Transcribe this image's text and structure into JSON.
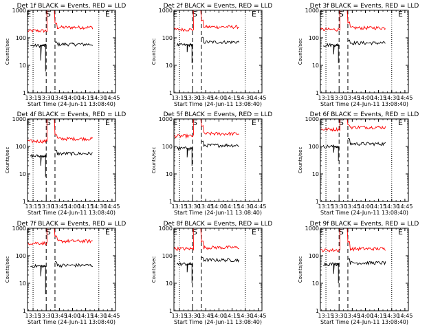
{
  "figure": {
    "background": "#ffffff"
  },
  "chart_data": [
    {
      "type": "line",
      "title": "Det 1f BLACK = Events, RED = LLD",
      "xlabel": "Start Time (24-Jun-11 13:08:40)",
      "ylabel": "Counts/sec",
      "yscale": "log",
      "ylim": [
        1,
        1000
      ],
      "y_ticks": [
        "1",
        "10",
        "100",
        "1000"
      ],
      "x_ticks": [
        "13:15",
        "13:30",
        "13:45",
        "14:00",
        "14:15",
        "14:30",
        "14:45"
      ],
      "markers": [
        "E",
        "S",
        "E"
      ],
      "series": [
        {
          "color": "#ff0000",
          "segments": [
            {
              "start": "13:08:40",
              "end": "13:31:00",
              "level": 180
            },
            {
              "start": "13:40:00",
              "end": "14:23:00",
              "level": 240,
              "peak": 330
            }
          ]
        },
        {
          "color": "#000000",
          "segments": [
            {
              "start": "13:12:00",
              "end": "13:30:00",
              "level": 52,
              "dips": [
                15,
                6
              ]
            },
            {
              "start": "13:40:00",
              "end": "14:23:00",
              "level": 58,
              "peak": 70
            }
          ]
        }
      ]
    },
    {
      "type": "line",
      "title": "Det 2f BLACK = Events, RED = LLD",
      "xlabel": "Start Time (24-Jun-11 13:08:40)",
      "ylabel": "Counts/sec",
      "yscale": "log",
      "ylim": [
        1,
        1000
      ],
      "y_ticks": [
        "1",
        "10",
        "100",
        "1000"
      ],
      "x_ticks": [
        "13:15",
        "13:30",
        "13:45",
        "14:00",
        "14:15",
        "14:30",
        "14:45"
      ],
      "markers": [
        "E",
        "S",
        "E"
      ],
      "series": [
        {
          "color": "#ff0000",
          "segments": [
            {
              "start": "13:08:40",
              "end": "13:31:00",
              "level": 200
            },
            {
              "start": "13:40:00",
              "end": "14:23:00",
              "level": 250,
              "peak": 420
            }
          ]
        },
        {
          "color": "#000000",
          "segments": [
            {
              "start": "13:12:00",
              "end": "13:30:00",
              "level": 55,
              "dips": [
                30,
                12
              ]
            },
            {
              "start": "13:40:00",
              "end": "14:23:00",
              "level": 70,
              "peak": 100
            }
          ]
        }
      ]
    },
    {
      "type": "line",
      "title": "Det 3f BLACK = Events, RED = LLD",
      "xlabel": "Start Time (24-Jun-11 13:08:40)",
      "ylabel": "Counts/sec",
      "yscale": "log",
      "ylim": [
        1,
        1000
      ],
      "y_ticks": [
        "1",
        "10",
        "100",
        "1000"
      ],
      "x_ticks": [
        "13:15",
        "13:30",
        "13:45",
        "14:00",
        "14:15",
        "14:30",
        "14:45"
      ],
      "markers": [
        "E",
        "S",
        "E"
      ],
      "series": [
        {
          "color": "#ff0000",
          "segments": [
            {
              "start": "13:08:40",
              "end": "13:31:00",
              "level": 200
            },
            {
              "start": "13:40:00",
              "end": "14:23:00",
              "level": 230,
              "peak": 360
            }
          ]
        },
        {
          "color": "#000000",
          "segments": [
            {
              "start": "13:12:00",
              "end": "13:30:00",
              "level": 55,
              "dips": [
                25,
                12
              ]
            },
            {
              "start": "13:40:00",
              "end": "14:23:00",
              "level": 65,
              "peak": 85
            }
          ]
        }
      ]
    },
    {
      "type": "line",
      "title": "Det 4f BLACK = Events, RED = LLD",
      "xlabel": "Start Time (24-Jun-11 13:08:40)",
      "ylabel": "Counts/sec",
      "yscale": "log",
      "ylim": [
        1,
        1000
      ],
      "y_ticks": [
        "1",
        "10",
        "100",
        "1000"
      ],
      "x_ticks": [
        "13:15",
        "13:30",
        "13:45",
        "14:00",
        "14:15",
        "14:30",
        "14:45"
      ],
      "markers": [
        "E",
        "S",
        "E"
      ],
      "series": [
        {
          "color": "#ff0000",
          "segments": [
            {
              "start": "13:08:40",
              "end": "13:31:00",
              "level": 155
            },
            {
              "start": "13:40:00",
              "end": "14:23:00",
              "level": 190,
              "peak": 270
            }
          ]
        },
        {
          "color": "#000000",
          "segments": [
            {
              "start": "13:12:00",
              "end": "13:30:00",
              "level": 45,
              "dips": [
                20,
                8
              ]
            },
            {
              "start": "13:40:00",
              "end": "14:23:00",
              "level": 55,
              "peak": 70
            }
          ]
        }
      ]
    },
    {
      "type": "line",
      "title": "Det 5f BLACK = Events, RED = LLD",
      "xlabel": "Start Time (24-Jun-11 13:08:40)",
      "ylabel": "Counts/sec",
      "yscale": "log",
      "ylim": [
        1,
        1000
      ],
      "y_ticks": [
        "1",
        "10",
        "100",
        "1000"
      ],
      "x_ticks": [
        "13:15",
        "13:30",
        "13:45",
        "14:00",
        "14:15",
        "14:30",
        "14:45"
      ],
      "markers": [
        "E",
        "S",
        "E"
      ],
      "series": [
        {
          "color": "#ff0000",
          "segments": [
            {
              "start": "13:08:40",
              "end": "13:31:00",
              "level": 240
            },
            {
              "start": "13:40:00",
              "end": "14:23:00",
              "level": 290,
              "peak": 560
            }
          ]
        },
        {
          "color": "#000000",
          "segments": [
            {
              "start": "13:12:00",
              "end": "13:30:00",
              "level": 85,
              "dips": [
                40,
                20
              ]
            },
            {
              "start": "13:40:00",
              "end": "14:23:00",
              "level": 110,
              "peak": 150
            }
          ]
        }
      ]
    },
    {
      "type": "line",
      "title": "Det 6f BLACK = Events, RED = LLD",
      "xlabel": "Start Time (24-Jun-11 13:08:40)",
      "ylabel": "Counts/sec",
      "yscale": "log",
      "ylim": [
        1,
        1000
      ],
      "y_ticks": [
        "1",
        "10",
        "100",
        "1000"
      ],
      "x_ticks": [
        "13:15",
        "13:30",
        "13:45",
        "14:00",
        "14:15",
        "14:30",
        "14:45"
      ],
      "markers": [
        "E",
        "S",
        "E"
      ],
      "series": [
        {
          "color": "#ff0000",
          "segments": [
            {
              "start": "13:08:40",
              "end": "13:31:00",
              "level": 420
            },
            {
              "start": "13:40:00",
              "end": "14:23:00",
              "level": 500,
              "peak": 600
            }
          ]
        },
        {
          "color": "#000000",
          "segments": [
            {
              "start": "13:12:00",
              "end": "13:30:00",
              "level": 100,
              "dips": [
                60,
                30
              ]
            },
            {
              "start": "13:40:00",
              "end": "14:23:00",
              "level": 125,
              "peak": 190
            }
          ]
        }
      ]
    },
    {
      "type": "line",
      "title": "Det 7f BLACK = Events, RED = LLD",
      "xlabel": "Start Time (24-Jun-11 13:08:40)",
      "ylabel": "Counts/sec",
      "yscale": "log",
      "ylim": [
        1,
        1000
      ],
      "y_ticks": [
        "1",
        "10",
        "100",
        "1000"
      ],
      "x_ticks": [
        "13:15",
        "13:30",
        "13:45",
        "14:00",
        "14:15",
        "14:30",
        "14:45"
      ],
      "markers": [
        "E",
        "S",
        "E"
      ],
      "series": [
        {
          "color": "#ff0000",
          "segments": [
            {
              "start": "13:08:40",
              "end": "13:31:00",
              "level": 290
            },
            {
              "start": "13:40:00",
              "end": "14:23:00",
              "level": 340,
              "peak": 500
            }
          ]
        },
        {
          "color": "#000000",
          "segments": [
            {
              "start": "13:12:00",
              "end": "13:30:00",
              "level": 42,
              "dips": [
                18,
                4
              ]
            },
            {
              "start": "13:40:00",
              "end": "14:23:00",
              "level": 45,
              "peak": 60
            }
          ]
        }
      ]
    },
    {
      "type": "line",
      "title": "Det 8f BLACK = Events, RED = LLD",
      "xlabel": "Start Time (24-Jun-11 13:08:40)",
      "ylabel": "Counts/sec",
      "yscale": "log",
      "ylim": [
        1,
        1000
      ],
      "y_ticks": [
        "1",
        "10",
        "100",
        "1000"
      ],
      "x_ticks": [
        "13:15",
        "13:30",
        "13:45",
        "14:00",
        "14:15",
        "14:30",
        "14:45"
      ],
      "markers": [
        "E",
        "S",
        "E"
      ],
      "series": [
        {
          "color": "#ff0000",
          "segments": [
            {
              "start": "13:08:40",
              "end": "13:31:00",
              "level": 180
            },
            {
              "start": "13:40:00",
              "end": "14:23:00",
              "level": 200,
              "peak": 330
            }
          ]
        },
        {
          "color": "#000000",
          "segments": [
            {
              "start": "13:12:00",
              "end": "13:30:00",
              "level": 50,
              "dips": [
                25,
                10
              ]
            },
            {
              "start": "13:40:00",
              "end": "14:23:00",
              "level": 70,
              "peak": 85
            }
          ]
        }
      ]
    },
    {
      "type": "line",
      "title": "Det 9f BLACK = Events, RED = LLD",
      "xlabel": "Start Time (24-Jun-11 13:08:40)",
      "ylabel": "Counts/sec",
      "yscale": "log",
      "ylim": [
        1,
        1000
      ],
      "y_ticks": [
        "1",
        "10",
        "100",
        "1000"
      ],
      "x_ticks": [
        "13:15",
        "13:30",
        "13:45",
        "14:00",
        "14:15",
        "14:30",
        "14:45"
      ],
      "markers": [
        "E",
        "S",
        "E"
      ],
      "series": [
        {
          "color": "#ff0000",
          "segments": [
            {
              "start": "13:08:40",
              "end": "13:31:00",
              "level": 160
            },
            {
              "start": "13:40:00",
              "end": "14:23:00",
              "level": 180,
              "peak": 320
            }
          ]
        },
        {
          "color": "#000000",
          "segments": [
            {
              "start": "13:12:00",
              "end": "13:30:00",
              "level": 50,
              "dips": [
                22,
                10
              ]
            },
            {
              "start": "13:40:00",
              "end": "14:23:00",
              "level": 55,
              "peak": 80
            }
          ]
        }
      ]
    }
  ]
}
